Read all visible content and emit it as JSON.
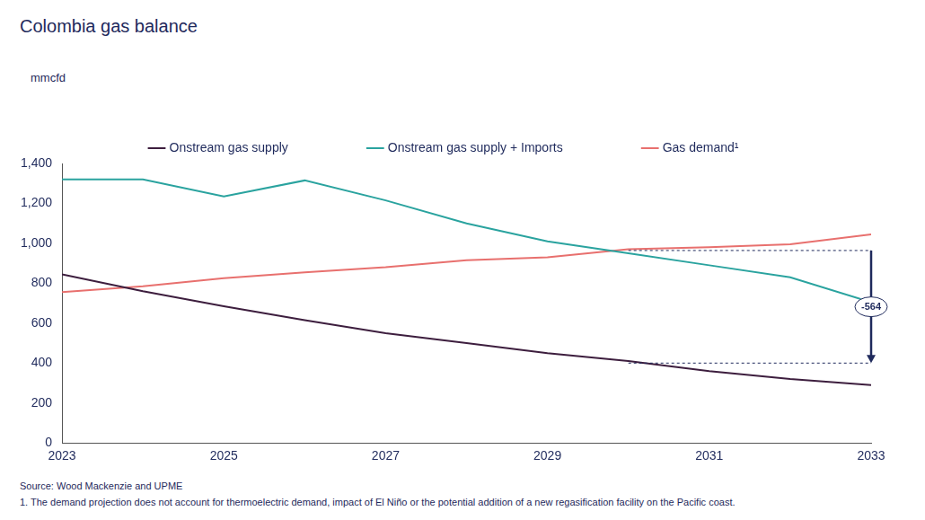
{
  "chart_data": {
    "type": "line",
    "title": "Colombia gas balance",
    "y_label": "mmcfd",
    "x": [
      2023,
      2024,
      2025,
      2026,
      2027,
      2028,
      2029,
      2030,
      2031,
      2032,
      2033
    ],
    "series": [
      {
        "name": "Onstream gas supply",
        "color": "#3d1e3e",
        "values": [
          845,
          760,
          685,
          615,
          550,
          500,
          450,
          410,
          360,
          320,
          290
        ]
      },
      {
        "name": "Onstream gas supply + Imports",
        "color": "#2aa39f",
        "values": [
          1320,
          1320,
          1235,
          1315,
          1215,
          1100,
          1010,
          950,
          890,
          830,
          705
        ]
      },
      {
        "name": "Gas demand¹",
        "color": "#e8706e",
        "values": [
          755,
          785,
          825,
          855,
          880,
          915,
          930,
          970,
          980,
          995,
          1045
        ]
      }
    ],
    "xlim": [
      2023,
      2033
    ],
    "xticks": [
      2023,
      2025,
      2027,
      2029,
      2031,
      2033
    ],
    "ylim": [
      0,
      1400
    ],
    "yticks": [
      0,
      200,
      400,
      600,
      800,
      {
        "value": 1000,
        "label": "1,000"
      },
      {
        "value": 1200,
        "label": "1,200"
      },
      {
        "value": 1400,
        "label": "1,400"
      }
    ],
    "grid": false,
    "legend": "top",
    "annotation": {
      "text": "-564",
      "x": 2033,
      "x_start": 2030,
      "y_from": 964,
      "y_to": 400
    },
    "source": "Source: Wood Mackenzie and UPME",
    "footnote": "1. The demand projection does not account for thermoelectric demand, impact of El Niño or the potential addition of a new regasification facility on the Pacific coast."
  }
}
